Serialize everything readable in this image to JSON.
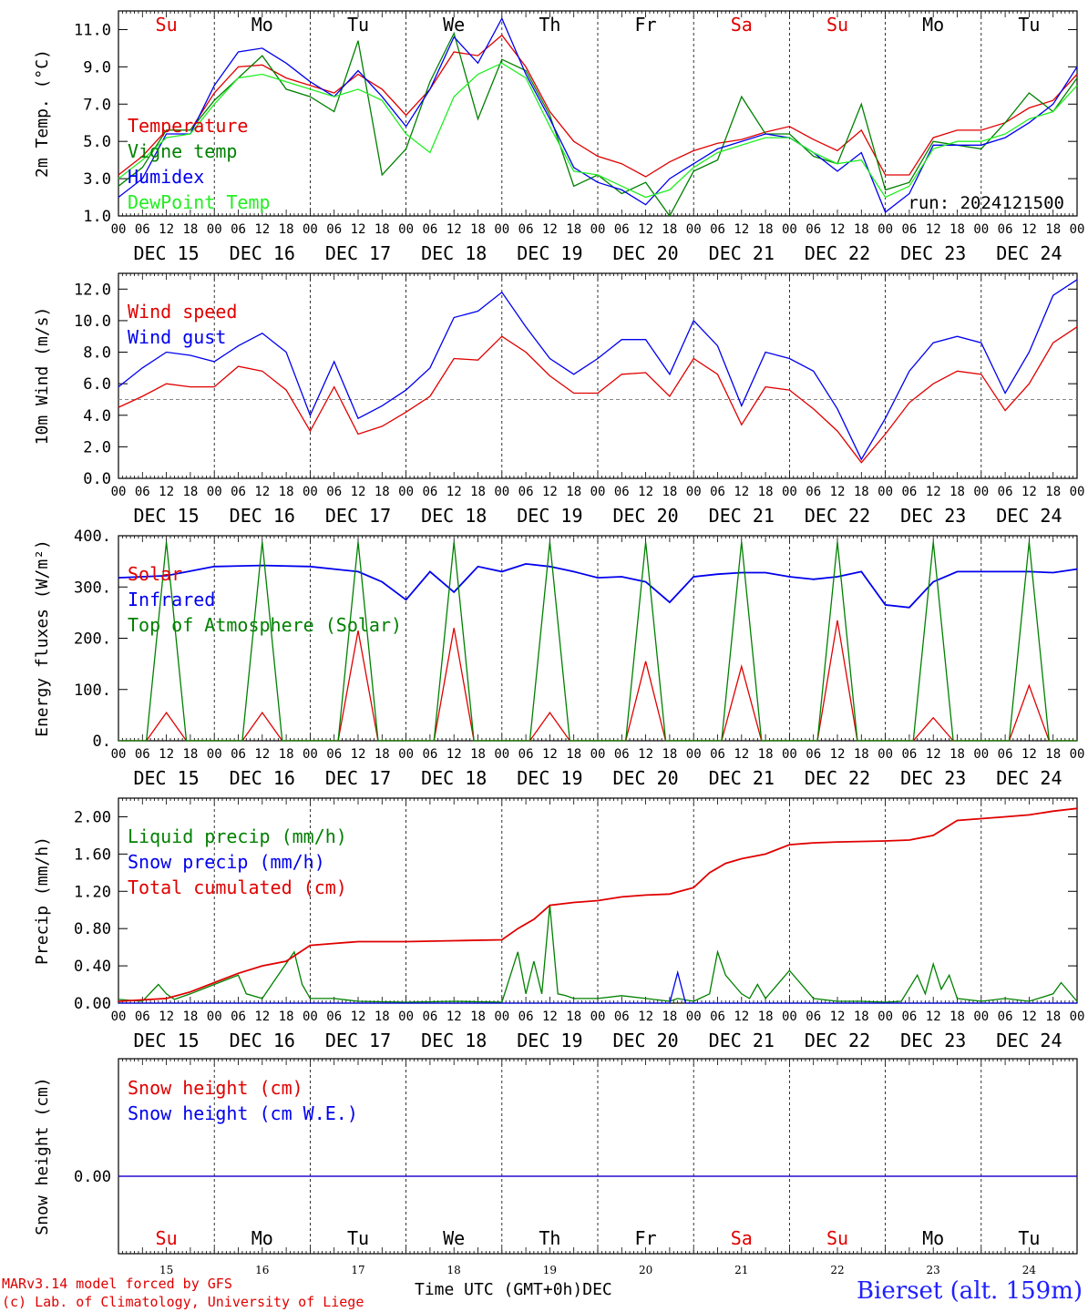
{
  "colors": {
    "red": "#e00000",
    "dark_green": "#008000",
    "light_green": "#22ee22",
    "blue": "#0000ee",
    "gray": "#888888"
  },
  "days": {
    "dates": [
      "DEC 15",
      "DEC 16",
      "DEC 17",
      "DEC 18",
      "DEC 19",
      "DEC 20",
      "DEC 21",
      "DEC 22",
      "DEC 23",
      "DEC 24"
    ],
    "weekdays_top": [
      "Su",
      "Mo",
      "Tu",
      "We",
      "Th",
      "Fr",
      "Sa",
      "Su",
      "Mo",
      "Tu"
    ],
    "weekday_colors": [
      "red",
      "black",
      "black",
      "black",
      "black",
      "black",
      "red",
      "red",
      "black",
      "black"
    ],
    "hour_labels": [
      "00",
      "06",
      "12",
      "18"
    ],
    "day_numbers": [
      "15",
      "16",
      "17",
      "18",
      "19",
      "20",
      "21",
      "22",
      "23",
      "24"
    ]
  },
  "run_label": "run: 2024121500",
  "footer": {
    "model_line": "MARv3.14 model forced by GFS",
    "lab_line": "(c) Lab. of Climatology, University of Liege",
    "xlabel": "Time UTC (GMT+0h)",
    "month": "DEC",
    "station": "Bierset (alt. 159m)"
  },
  "chart_data": [
    {
      "type": "line",
      "ylabel": "2m Temp. (°C)",
      "ylim": [
        1.0,
        12.0
      ],
      "yticks": [
        1.0,
        3.0,
        5.0,
        7.0,
        9.0,
        11.0
      ],
      "tick_labels": [
        "1.0",
        "3.0",
        "5.0",
        "7.0",
        "9.0",
        "11.0"
      ],
      "xlim_hours": [
        0,
        240
      ],
      "series": [
        {
          "name": "Temperature",
          "color": "red",
          "x": [
            0,
            6,
            12,
            18,
            24,
            30,
            36,
            42,
            48,
            54,
            60,
            66,
            72,
            78,
            84,
            90,
            96,
            102,
            108,
            114,
            120,
            126,
            132,
            138,
            144,
            150,
            156,
            162,
            168,
            174,
            180,
            186,
            192,
            198,
            204,
            210,
            216,
            222,
            228,
            234,
            240
          ],
          "y": [
            3.2,
            4.2,
            5.6,
            5.6,
            7.6,
            9.0,
            9.1,
            8.4,
            8.0,
            7.6,
            8.6,
            7.8,
            6.4,
            7.8,
            9.8,
            9.6,
            10.7,
            9.0,
            6.6,
            5.0,
            4.2,
            3.8,
            3.1,
            3.9,
            4.5,
            4.9,
            5.1,
            5.5,
            5.8,
            5.1,
            4.5,
            5.6,
            3.2,
            3.2,
            5.2,
            5.6,
            5.6,
            6.0,
            6.8,
            7.2,
            8.6
          ]
        },
        {
          "name": "Vigne temp",
          "color": "dark_green",
          "x": [
            0,
            6,
            12,
            18,
            24,
            30,
            36,
            42,
            48,
            54,
            60,
            66,
            72,
            78,
            84,
            90,
            96,
            102,
            108,
            114,
            120,
            126,
            132,
            138,
            144,
            150,
            156,
            162,
            168,
            174,
            180,
            186,
            192,
            198,
            204,
            210,
            216,
            222,
            228,
            234,
            240
          ],
          "y": [
            2.6,
            3.6,
            5.6,
            5.6,
            7.2,
            8.4,
            9.6,
            7.8,
            7.4,
            6.6,
            10.4,
            3.2,
            4.6,
            8.2,
            10.8,
            6.2,
            9.4,
            8.8,
            6.4,
            2.6,
            3.2,
            2.2,
            2.8,
            1.0,
            3.4,
            4.0,
            7.4,
            5.4,
            5.4,
            4.2,
            3.8,
            7.0,
            2.4,
            2.8,
            5.0,
            4.8,
            4.6,
            6.0,
            7.6,
            6.6,
            8.4
          ]
        },
        {
          "name": "Humidex",
          "color": "blue",
          "x": [
            0,
            6,
            12,
            18,
            24,
            30,
            36,
            42,
            48,
            54,
            60,
            66,
            72,
            78,
            84,
            90,
            96,
            102,
            108,
            114,
            120,
            126,
            132,
            138,
            144,
            150,
            156,
            162,
            168,
            174,
            180,
            186,
            192,
            198,
            204,
            210,
            216,
            222,
            228,
            234,
            240
          ],
          "y": [
            2.0,
            3.0,
            5.4,
            5.4,
            8.0,
            9.8,
            10.0,
            9.2,
            8.2,
            7.4,
            8.8,
            7.4,
            5.8,
            7.8,
            10.6,
            9.2,
            11.6,
            8.6,
            6.2,
            3.6,
            2.8,
            2.4,
            1.6,
            3.0,
            3.8,
            4.6,
            5.0,
            5.4,
            5.2,
            4.4,
            3.4,
            4.4,
            1.2,
            2.2,
            4.8,
            4.8,
            4.8,
            5.2,
            6.0,
            7.0,
            9.0
          ]
        },
        {
          "name": "DewPoint Temp",
          "color": "light_green",
          "x": [
            0,
            6,
            12,
            18,
            24,
            30,
            36,
            42,
            48,
            54,
            60,
            66,
            72,
            78,
            84,
            90,
            96,
            102,
            108,
            114,
            120,
            126,
            132,
            138,
            144,
            150,
            156,
            162,
            168,
            174,
            180,
            186,
            192,
            198,
            204,
            210,
            216,
            222,
            228,
            234,
            240
          ],
          "y": [
            3.0,
            4.0,
            5.2,
            5.4,
            7.0,
            8.4,
            8.6,
            8.2,
            7.8,
            7.4,
            7.8,
            7.2,
            5.4,
            4.4,
            7.4,
            8.6,
            9.2,
            8.4,
            5.8,
            3.4,
            3.2,
            2.6,
            2.0,
            2.4,
            3.6,
            4.4,
            4.8,
            5.2,
            5.2,
            4.4,
            3.8,
            4.0,
            2.0,
            2.6,
            4.6,
            5.0,
            5.0,
            5.4,
            6.2,
            6.6,
            8.0
          ]
        }
      ],
      "legend_position": "left",
      "grid": "day-separators"
    },
    {
      "type": "line",
      "ylabel": "10m Wind (m/s)",
      "ylim": [
        0.0,
        13.0
      ],
      "yticks": [
        0.0,
        2.0,
        4.0,
        6.0,
        8.0,
        10.0,
        12.0
      ],
      "tick_labels": [
        "0.0",
        "2.0",
        "4.0",
        "6.0",
        "8.0",
        "10.0",
        "12.0"
      ],
      "reference_line": 5.0,
      "xlim_hours": [
        0,
        240
      ],
      "series": [
        {
          "name": "Wind speed",
          "color": "red",
          "x": [
            0,
            6,
            12,
            18,
            24,
            30,
            36,
            42,
            48,
            54,
            60,
            66,
            72,
            78,
            84,
            90,
            96,
            102,
            108,
            114,
            120,
            126,
            132,
            138,
            144,
            150,
            156,
            162,
            168,
            174,
            180,
            186,
            192,
            198,
            204,
            210,
            216,
            222,
            228,
            234,
            240
          ],
          "y": [
            4.5,
            5.2,
            6.0,
            5.8,
            5.8,
            7.1,
            6.8,
            5.6,
            3.0,
            5.8,
            2.8,
            3.3,
            4.2,
            5.2,
            7.6,
            7.5,
            9.0,
            8.0,
            6.5,
            5.4,
            5.4,
            6.6,
            6.7,
            5.2,
            7.6,
            6.6,
            3.4,
            5.8,
            5.6,
            4.4,
            3.0,
            1.0,
            2.8,
            4.8,
            6.0,
            6.8,
            6.6,
            4.3,
            6.0,
            8.6,
            9.6
          ]
        },
        {
          "name": "Wind gust",
          "color": "blue",
          "x": [
            0,
            6,
            12,
            18,
            24,
            30,
            36,
            42,
            48,
            54,
            60,
            66,
            72,
            78,
            84,
            90,
            96,
            102,
            108,
            114,
            120,
            126,
            132,
            138,
            144,
            150,
            156,
            162,
            168,
            174,
            180,
            186,
            192,
            198,
            204,
            210,
            216,
            222,
            228,
            234,
            240
          ],
          "y": [
            5.8,
            7.0,
            8.0,
            7.8,
            7.4,
            8.4,
            9.2,
            8.0,
            4.0,
            7.4,
            3.8,
            4.6,
            5.6,
            7.0,
            10.2,
            10.6,
            11.8,
            9.6,
            7.6,
            6.6,
            7.6,
            8.8,
            8.8,
            6.6,
            10.0,
            8.4,
            4.6,
            8.0,
            7.6,
            6.8,
            4.4,
            1.2,
            3.8,
            6.8,
            8.6,
            9.0,
            8.6,
            5.4,
            8.0,
            11.6,
            12.6
          ]
        }
      ],
      "legend_position": "left",
      "grid": "day-separators"
    },
    {
      "type": "line",
      "ylabel": "Energy fluxes (W/m²)",
      "ylim": [
        0,
        400
      ],
      "yticks": [
        0,
        100,
        200,
        300,
        400
      ],
      "tick_labels": [
        "0.",
        "100.",
        "200.",
        "300.",
        "400."
      ],
      "xlim_hours": [
        0,
        240
      ],
      "series": [
        {
          "name": "Solar",
          "color": "red",
          "daily_peak_hour": 12,
          "peaks": [
            55,
            55,
            215,
            220,
            55,
            155,
            145,
            235,
            45,
            108
          ]
        },
        {
          "name": "Infrared",
          "color": "blue",
          "x": [
            0,
            12,
            24,
            36,
            48,
            54,
            60,
            66,
            72,
            78,
            84,
            90,
            96,
            102,
            108,
            114,
            120,
            126,
            132,
            138,
            144,
            150,
            156,
            162,
            168,
            174,
            180,
            186,
            192,
            198,
            204,
            210,
            216,
            222,
            228,
            234,
            240
          ],
          "y": [
            318,
            322,
            340,
            342,
            340,
            335,
            330,
            310,
            275,
            330,
            290,
            340,
            330,
            345,
            340,
            330,
            318,
            320,
            310,
            270,
            320,
            325,
            328,
            328,
            320,
            315,
            320,
            330,
            265,
            260,
            310,
            330,
            330,
            330,
            330,
            328,
            335
          ]
        },
        {
          "name": "Top of Atmosphere (Solar)",
          "color": "dark_green",
          "daily_peak_hour": 12,
          "peaks": [
            388,
            388,
            388,
            388,
            388,
            388,
            388,
            388,
            388,
            388
          ]
        }
      ],
      "legend_position": "left",
      "grid": "day-separators"
    },
    {
      "type": "line",
      "ylabel": "Precip (mm/h)",
      "ylim": [
        0.0,
        2.2
      ],
      "yticks": [
        0.0,
        0.4,
        0.8,
        1.2,
        1.6,
        2.0
      ],
      "tick_labels": [
        "0.00",
        "0.40",
        "0.80",
        "1.20",
        "1.60",
        "2.00"
      ],
      "xlim_hours": [
        0,
        240
      ],
      "series": [
        {
          "name": "Liquid precip (mm/h)",
          "color": "dark_green",
          "x": [
            0,
            6,
            10,
            12,
            14,
            18,
            24,
            30,
            32,
            36,
            40,
            44,
            46,
            48,
            54,
            60,
            72,
            84,
            96,
            100,
            102,
            104,
            106,
            108,
            110,
            112,
            114,
            120,
            126,
            132,
            138,
            140,
            144,
            148,
            150,
            152,
            154,
            156,
            158,
            160,
            162,
            166,
            168,
            174,
            180,
            186,
            192,
            196,
            200,
            202,
            204,
            206,
            208,
            210,
            216,
            222,
            228,
            234,
            236,
            240
          ],
          "y": [
            0.04,
            0.02,
            0.2,
            0.1,
            0.04,
            0.1,
            0.2,
            0.3,
            0.1,
            0.05,
            0.3,
            0.55,
            0.2,
            0.05,
            0.05,
            0.02,
            0.01,
            0.02,
            0.01,
            0.55,
            0.1,
            0.45,
            0.1,
            1.05,
            0.1,
            0.08,
            0.05,
            0.05,
            0.08,
            0.05,
            0.02,
            0.05,
            0.02,
            0.1,
            0.55,
            0.3,
            0.2,
            0.1,
            0.05,
            0.2,
            0.05,
            0.25,
            0.35,
            0.05,
            0.02,
            0.02,
            0.01,
            0.02,
            0.3,
            0.1,
            0.42,
            0.15,
            0.3,
            0.05,
            0.02,
            0.05,
            0.02,
            0.1,
            0.22,
            0.02
          ]
        },
        {
          "name": "Snow precip (mm/h)",
          "color": "blue",
          "x": [
            0,
            30,
            60,
            90,
            120,
            138,
            140,
            142,
            150,
            180,
            210,
            240
          ],
          "y": [
            0.0,
            0.0,
            0.0,
            0.0,
            0.0,
            0.0,
            0.33,
            0.0,
            0.0,
            0.0,
            0.0,
            0.0
          ]
        },
        {
          "name": "Total cumulated (cm)",
          "color": "red",
          "x": [
            0,
            12,
            18,
            24,
            30,
            36,
            42,
            48,
            54,
            60,
            72,
            84,
            96,
            100,
            104,
            108,
            114,
            120,
            126,
            132,
            138,
            144,
            148,
            152,
            156,
            162,
            168,
            174,
            180,
            192,
            198,
            204,
            210,
            216,
            222,
            228,
            234,
            240
          ],
          "y": [
            0.02,
            0.05,
            0.12,
            0.22,
            0.32,
            0.4,
            0.45,
            0.62,
            0.64,
            0.66,
            0.66,
            0.67,
            0.68,
            0.8,
            0.9,
            1.05,
            1.08,
            1.1,
            1.14,
            1.16,
            1.17,
            1.24,
            1.4,
            1.5,
            1.55,
            1.6,
            1.7,
            1.72,
            1.73,
            1.74,
            1.75,
            1.8,
            1.96,
            1.98,
            2.0,
            2.02,
            2.06,
            2.09
          ]
        }
      ],
      "legend_position": "left",
      "grid": "day-separators"
    },
    {
      "type": "line",
      "ylabel": "Snow height (cm)",
      "yticks": [
        0.0
      ],
      "tick_labels": [
        "0.00"
      ],
      "xlim_hours": [
        0,
        240
      ],
      "series": [
        {
          "name": "Snow height (cm)",
          "color": "red",
          "x": [
            0,
            240
          ],
          "y": [
            0.0,
            0.0
          ]
        },
        {
          "name": "Snow height (cm W.E.)",
          "color": "blue",
          "x": [
            0,
            240
          ],
          "y": [
            0.0,
            0.0
          ]
        }
      ],
      "legend_position": "left",
      "grid": "day-separators"
    }
  ]
}
